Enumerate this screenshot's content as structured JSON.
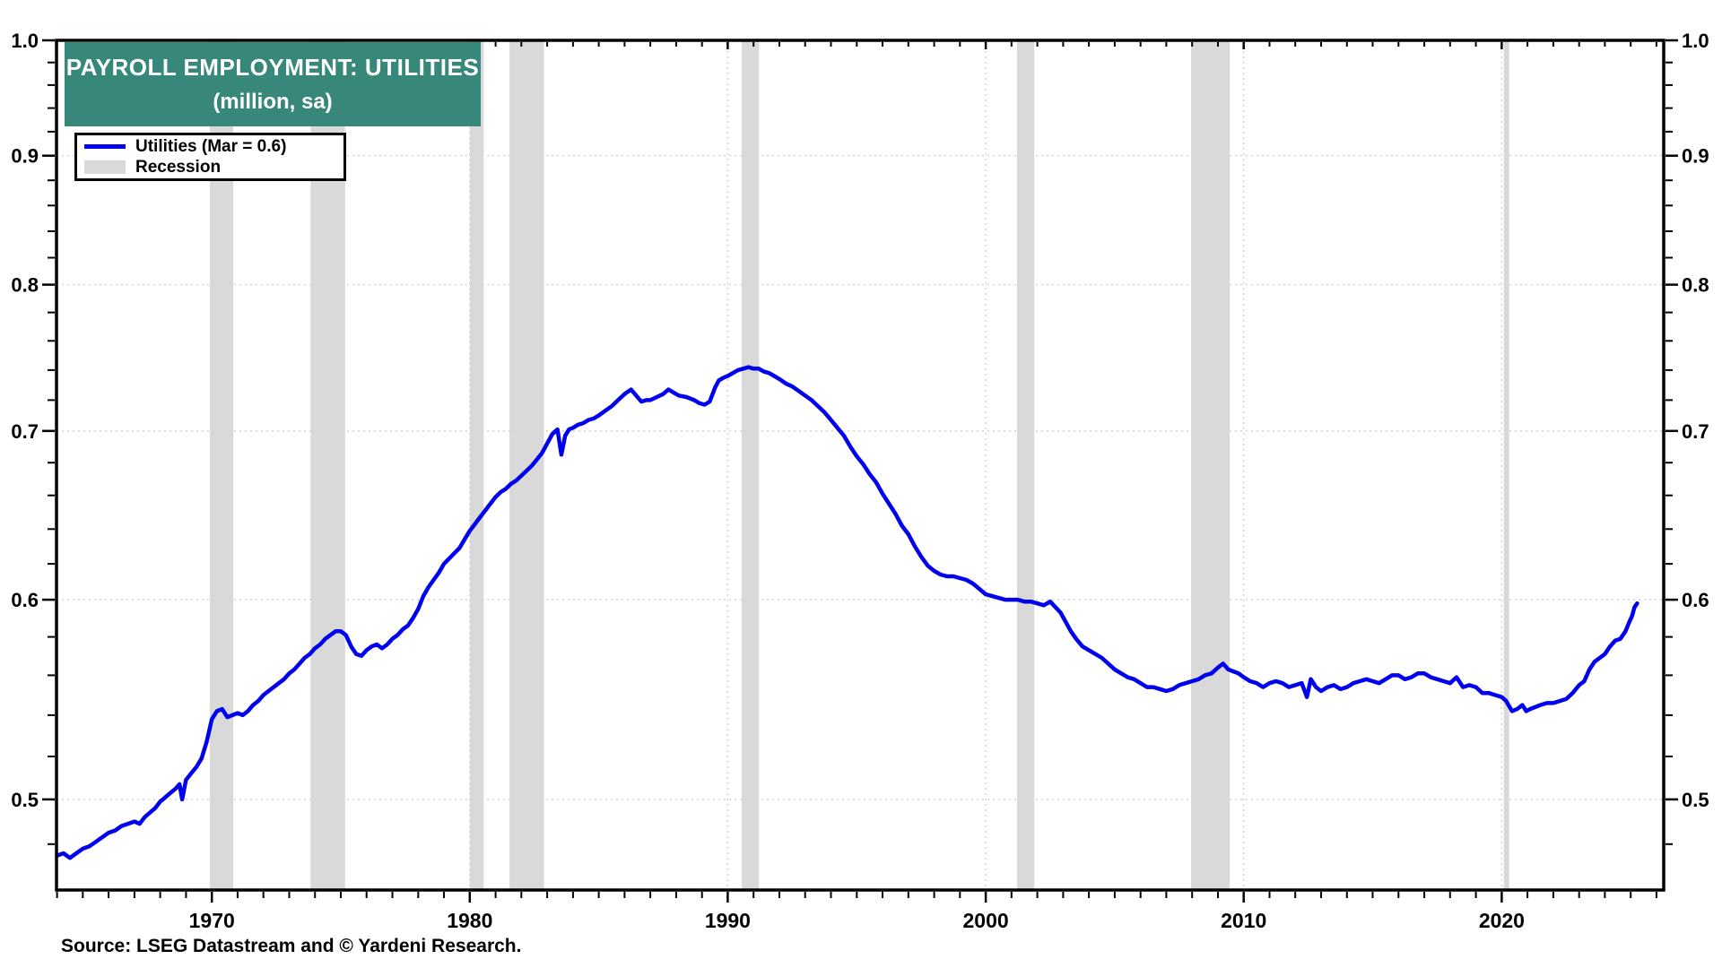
{
  "title": {
    "line1": "PAYROLL EMPLOYMENT: UTILITIES",
    "line2": "(million, sa)"
  },
  "legend": {
    "series_label": "Utilities (Mar = 0.6)",
    "recession_label": "Recession"
  },
  "source_note": "Source: LSEG Datastream and © Yardeni Research.",
  "colors": {
    "line": "#0000EE",
    "recession": "#D9D9D9",
    "title_bg": "#37877A",
    "title_text": "#FFFFFF",
    "grid": "#D6D6D6",
    "axis": "#000000"
  },
  "chart_data": {
    "type": "line",
    "title": "PAYROLL EMPLOYMENT: UTILITIES (million, sa)",
    "y_scale": "log",
    "xlim": [
      1963.98,
      2026.28
    ],
    "ylim": [
      0.4603,
      1.0
    ],
    "y_ticks": [
      1.0,
      0.9,
      0.8,
      0.7,
      0.6,
      0.5
    ],
    "y_gridlines": [
      0.9,
      0.8,
      0.7,
      0.6,
      0.5
    ],
    "y_minor_step": 0.02,
    "x_ticks": [
      1970,
      1980,
      1990,
      2000,
      2010,
      2020
    ],
    "x_minor_step": 1,
    "grid": true,
    "legend_position": "top-left",
    "recessions": [
      [
        1969.92,
        1970.83
      ],
      [
        1973.83,
        1975.17
      ],
      [
        1980.0,
        1980.54
      ],
      [
        1981.54,
        1982.88
      ],
      [
        1990.54,
        1991.21
      ],
      [
        2001.21,
        2001.88
      ],
      [
        2007.96,
        2009.46
      ],
      [
        2020.08,
        2020.29
      ]
    ],
    "series": [
      {
        "name": "Utilities (Mar = 0.6)",
        "last_point_label": "Mar 2025 = 0.6",
        "points": [
          [
            1964.0,
            0.475
          ],
          [
            1964.25,
            0.476
          ],
          [
            1964.5,
            0.474
          ],
          [
            1964.75,
            0.476
          ],
          [
            1965.0,
            0.478
          ],
          [
            1965.25,
            0.479
          ],
          [
            1965.5,
            0.481
          ],
          [
            1965.75,
            0.483
          ],
          [
            1966.0,
            0.485
          ],
          [
            1966.25,
            0.486
          ],
          [
            1966.5,
            0.488
          ],
          [
            1966.75,
            0.489
          ],
          [
            1967.0,
            0.49
          ],
          [
            1967.2,
            0.489
          ],
          [
            1967.4,
            0.492
          ],
          [
            1967.6,
            0.494
          ],
          [
            1967.8,
            0.496
          ],
          [
            1968.0,
            0.499
          ],
          [
            1968.2,
            0.501
          ],
          [
            1968.4,
            0.503
          ],
          [
            1968.6,
            0.505
          ],
          [
            1968.75,
            0.507
          ],
          [
            1968.85,
            0.5
          ],
          [
            1969.0,
            0.509
          ],
          [
            1969.2,
            0.512
          ],
          [
            1969.4,
            0.515
          ],
          [
            1969.6,
            0.519
          ],
          [
            1969.8,
            0.527
          ],
          [
            1970.0,
            0.538
          ],
          [
            1970.2,
            0.542
          ],
          [
            1970.4,
            0.543
          ],
          [
            1970.6,
            0.539
          ],
          [
            1970.8,
            0.54
          ],
          [
            1971.0,
            0.541
          ],
          [
            1971.2,
            0.54
          ],
          [
            1971.4,
            0.542
          ],
          [
            1971.6,
            0.545
          ],
          [
            1971.8,
            0.547
          ],
          [
            1972.0,
            0.55
          ],
          [
            1972.2,
            0.552
          ],
          [
            1972.4,
            0.554
          ],
          [
            1972.6,
            0.556
          ],
          [
            1972.8,
            0.558
          ],
          [
            1973.0,
            0.561
          ],
          [
            1973.2,
            0.563
          ],
          [
            1973.4,
            0.566
          ],
          [
            1973.6,
            0.569
          ],
          [
            1973.8,
            0.571
          ],
          [
            1974.0,
            0.574
          ],
          [
            1974.2,
            0.576
          ],
          [
            1974.4,
            0.579
          ],
          [
            1974.6,
            0.581
          ],
          [
            1974.8,
            0.583
          ],
          [
            1975.0,
            0.583
          ],
          [
            1975.2,
            0.581
          ],
          [
            1975.4,
            0.575
          ],
          [
            1975.6,
            0.571
          ],
          [
            1975.8,
            0.57
          ],
          [
            1976.0,
            0.573
          ],
          [
            1976.2,
            0.575
          ],
          [
            1976.4,
            0.576
          ],
          [
            1976.6,
            0.574
          ],
          [
            1976.8,
            0.576
          ],
          [
            1977.0,
            0.579
          ],
          [
            1977.2,
            0.581
          ],
          [
            1977.4,
            0.584
          ],
          [
            1977.6,
            0.586
          ],
          [
            1977.8,
            0.59
          ],
          [
            1978.0,
            0.595
          ],
          [
            1978.2,
            0.602
          ],
          [
            1978.4,
            0.607
          ],
          [
            1978.6,
            0.611
          ],
          [
            1978.8,
            0.615
          ],
          [
            1979.0,
            0.62
          ],
          [
            1979.2,
            0.623
          ],
          [
            1979.4,
            0.626
          ],
          [
            1979.6,
            0.629
          ],
          [
            1979.8,
            0.634
          ],
          [
            1980.0,
            0.639
          ],
          [
            1980.2,
            0.643
          ],
          [
            1980.4,
            0.647
          ],
          [
            1980.6,
            0.651
          ],
          [
            1980.8,
            0.655
          ],
          [
            1981.0,
            0.659
          ],
          [
            1981.2,
            0.662
          ],
          [
            1981.4,
            0.664
          ],
          [
            1981.6,
            0.667
          ],
          [
            1981.8,
            0.669
          ],
          [
            1982.0,
            0.672
          ],
          [
            1982.2,
            0.675
          ],
          [
            1982.4,
            0.678
          ],
          [
            1982.6,
            0.682
          ],
          [
            1982.8,
            0.686
          ],
          [
            1983.0,
            0.692
          ],
          [
            1983.2,
            0.698
          ],
          [
            1983.4,
            0.701
          ],
          [
            1983.55,
            0.685
          ],
          [
            1983.7,
            0.697
          ],
          [
            1983.85,
            0.701
          ],
          [
            1984.0,
            0.702
          ],
          [
            1984.2,
            0.704
          ],
          [
            1984.4,
            0.705
          ],
          [
            1984.6,
            0.707
          ],
          [
            1984.8,
            0.708
          ],
          [
            1985.0,
            0.71
          ],
          [
            1985.25,
            0.713
          ],
          [
            1985.5,
            0.716
          ],
          [
            1985.75,
            0.72
          ],
          [
            1986.0,
            0.724
          ],
          [
            1986.25,
            0.727
          ],
          [
            1986.45,
            0.723
          ],
          [
            1986.65,
            0.719
          ],
          [
            1986.85,
            0.72
          ],
          [
            1987.0,
            0.72
          ],
          [
            1987.25,
            0.722
          ],
          [
            1987.5,
            0.724
          ],
          [
            1987.7,
            0.727
          ],
          [
            1987.9,
            0.725
          ],
          [
            1988.1,
            0.723
          ],
          [
            1988.4,
            0.722
          ],
          [
            1988.7,
            0.72
          ],
          [
            1988.9,
            0.718
          ],
          [
            1989.1,
            0.717
          ],
          [
            1989.3,
            0.719
          ],
          [
            1989.5,
            0.728
          ],
          [
            1989.65,
            0.733
          ],
          [
            1989.85,
            0.735
          ],
          [
            1990.0,
            0.736
          ],
          [
            1990.2,
            0.738
          ],
          [
            1990.4,
            0.74
          ],
          [
            1990.6,
            0.741
          ],
          [
            1990.8,
            0.742
          ],
          [
            1991.0,
            0.741
          ],
          [
            1991.2,
            0.741
          ],
          [
            1991.4,
            0.739
          ],
          [
            1991.6,
            0.738
          ],
          [
            1991.8,
            0.736
          ],
          [
            1992.0,
            0.734
          ],
          [
            1992.25,
            0.731
          ],
          [
            1992.5,
            0.729
          ],
          [
            1992.75,
            0.726
          ],
          [
            1993.0,
            0.723
          ],
          [
            1993.25,
            0.72
          ],
          [
            1993.5,
            0.716
          ],
          [
            1993.75,
            0.712
          ],
          [
            1994.0,
            0.707
          ],
          [
            1994.25,
            0.702
          ],
          [
            1994.5,
            0.697
          ],
          [
            1994.75,
            0.69
          ],
          [
            1995.0,
            0.684
          ],
          [
            1995.25,
            0.679
          ],
          [
            1995.5,
            0.673
          ],
          [
            1995.75,
            0.668
          ],
          [
            1996.0,
            0.661
          ],
          [
            1996.25,
            0.655
          ],
          [
            1996.5,
            0.649
          ],
          [
            1996.75,
            0.642
          ],
          [
            1997.0,
            0.637
          ],
          [
            1997.25,
            0.63
          ],
          [
            1997.5,
            0.624
          ],
          [
            1997.75,
            0.619
          ],
          [
            1998.0,
            0.616
          ],
          [
            1998.25,
            0.614
          ],
          [
            1998.5,
            0.613
          ],
          [
            1998.75,
            0.613
          ],
          [
            1999.0,
            0.612
          ],
          [
            1999.25,
            0.611
          ],
          [
            1999.5,
            0.609
          ],
          [
            1999.75,
            0.606
          ],
          [
            2000.0,
            0.603
          ],
          [
            2000.25,
            0.602
          ],
          [
            2000.5,
            0.601
          ],
          [
            2000.75,
            0.6
          ],
          [
            2001.0,
            0.6
          ],
          [
            2001.25,
            0.6
          ],
          [
            2001.5,
            0.599
          ],
          [
            2001.75,
            0.599
          ],
          [
            2002.0,
            0.598
          ],
          [
            2002.25,
            0.597
          ],
          [
            2002.5,
            0.599
          ],
          [
            2002.7,
            0.596
          ],
          [
            2002.9,
            0.593
          ],
          [
            2003.1,
            0.588
          ],
          [
            2003.3,
            0.583
          ],
          [
            2003.5,
            0.579
          ],
          [
            2003.75,
            0.575
          ],
          [
            2004.0,
            0.573
          ],
          [
            2004.25,
            0.571
          ],
          [
            2004.5,
            0.569
          ],
          [
            2004.75,
            0.566
          ],
          [
            2005.0,
            0.563
          ],
          [
            2005.25,
            0.561
          ],
          [
            2005.5,
            0.559
          ],
          [
            2005.75,
            0.558
          ],
          [
            2006.0,
            0.556
          ],
          [
            2006.25,
            0.554
          ],
          [
            2006.5,
            0.554
          ],
          [
            2006.75,
            0.553
          ],
          [
            2007.0,
            0.552
          ],
          [
            2007.25,
            0.553
          ],
          [
            2007.5,
            0.555
          ],
          [
            2007.75,
            0.556
          ],
          [
            2008.0,
            0.557
          ],
          [
            2008.25,
            0.558
          ],
          [
            2008.5,
            0.56
          ],
          [
            2008.75,
            0.561
          ],
          [
            2009.0,
            0.564
          ],
          [
            2009.2,
            0.566
          ],
          [
            2009.4,
            0.563
          ],
          [
            2009.6,
            0.562
          ],
          [
            2009.8,
            0.561
          ],
          [
            2010.0,
            0.559
          ],
          [
            2010.25,
            0.557
          ],
          [
            2010.5,
            0.556
          ],
          [
            2010.75,
            0.554
          ],
          [
            2011.0,
            0.556
          ],
          [
            2011.25,
            0.557
          ],
          [
            2011.5,
            0.556
          ],
          [
            2011.75,
            0.554
          ],
          [
            2012.0,
            0.555
          ],
          [
            2012.25,
            0.556
          ],
          [
            2012.45,
            0.549
          ],
          [
            2012.6,
            0.558
          ],
          [
            2012.8,
            0.554
          ],
          [
            2013.0,
            0.552
          ],
          [
            2013.25,
            0.554
          ],
          [
            2013.5,
            0.555
          ],
          [
            2013.75,
            0.553
          ],
          [
            2014.0,
            0.554
          ],
          [
            2014.25,
            0.556
          ],
          [
            2014.5,
            0.557
          ],
          [
            2014.75,
            0.558
          ],
          [
            2015.0,
            0.557
          ],
          [
            2015.25,
            0.556
          ],
          [
            2015.5,
            0.558
          ],
          [
            2015.75,
            0.56
          ],
          [
            2016.0,
            0.56
          ],
          [
            2016.25,
            0.558
          ],
          [
            2016.5,
            0.559
          ],
          [
            2016.75,
            0.561
          ],
          [
            2017.0,
            0.561
          ],
          [
            2017.25,
            0.559
          ],
          [
            2017.5,
            0.558
          ],
          [
            2017.75,
            0.557
          ],
          [
            2018.0,
            0.556
          ],
          [
            2018.25,
            0.559
          ],
          [
            2018.5,
            0.554
          ],
          [
            2018.75,
            0.555
          ],
          [
            2019.0,
            0.554
          ],
          [
            2019.25,
            0.551
          ],
          [
            2019.5,
            0.551
          ],
          [
            2019.75,
            0.55
          ],
          [
            2020.0,
            0.549
          ],
          [
            2020.17,
            0.547
          ],
          [
            2020.4,
            0.542
          ],
          [
            2020.6,
            0.543
          ],
          [
            2020.8,
            0.545
          ],
          [
            2020.95,
            0.542
          ],
          [
            2021.1,
            0.543
          ],
          [
            2021.3,
            0.544
          ],
          [
            2021.5,
            0.545
          ],
          [
            2021.75,
            0.546
          ],
          [
            2022.0,
            0.546
          ],
          [
            2022.25,
            0.547
          ],
          [
            2022.5,
            0.548
          ],
          [
            2022.75,
            0.551
          ],
          [
            2023.0,
            0.555
          ],
          [
            2023.2,
            0.557
          ],
          [
            2023.4,
            0.563
          ],
          [
            2023.6,
            0.567
          ],
          [
            2023.8,
            0.569
          ],
          [
            2024.0,
            0.571
          ],
          [
            2024.2,
            0.575
          ],
          [
            2024.4,
            0.578
          ],
          [
            2024.6,
            0.579
          ],
          [
            2024.8,
            0.583
          ],
          [
            2024.95,
            0.588
          ],
          [
            2025.05,
            0.591
          ],
          [
            2025.15,
            0.596
          ],
          [
            2025.25,
            0.598
          ]
        ]
      }
    ]
  }
}
